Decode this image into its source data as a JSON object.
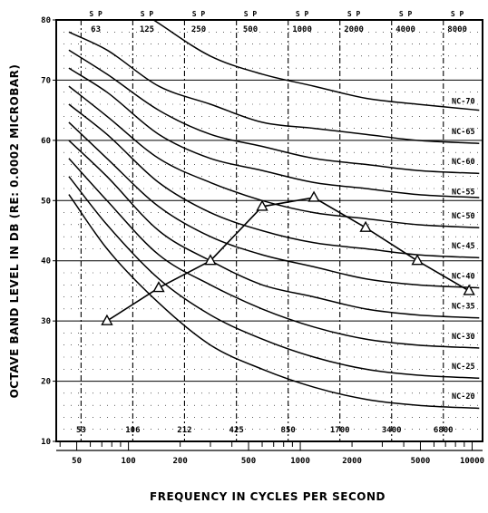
{
  "chart_data": {
    "type": "line",
    "xlabel": "FREQUENCY IN CYCLES PER SECOND",
    "ylabel": "OCTAVE BAND LEVEL IN DB (RE: 0.0002 MICROBAR)",
    "x_scale": "log",
    "xlim": [
      38,
      11500
    ],
    "ylim": [
      10,
      80
    ],
    "y_ticks": [
      10,
      20,
      30,
      40,
      50,
      60,
      70,
      80
    ],
    "x_ticks": [
      {
        "value": 50,
        "label": "50"
      },
      {
        "value": 100,
        "label": "100"
      },
      {
        "value": 200,
        "label": "200"
      },
      {
        "value": 500,
        "label": "500"
      },
      {
        "value": 1000,
        "label": "1000"
      },
      {
        "value": 2000,
        "label": "2000"
      },
      {
        "value": 5000,
        "label": "5000"
      },
      {
        "value": 10000,
        "label": "10000"
      }
    ],
    "band_edges": [
      {
        "value": 53,
        "label": "53"
      },
      {
        "value": 106,
        "label": "106"
      },
      {
        "value": 212,
        "label": "212"
      },
      {
        "value": 425,
        "label": "425"
      },
      {
        "value": 850,
        "label": "850"
      },
      {
        "value": 1700,
        "label": "1700"
      },
      {
        "value": 3400,
        "label": "3400"
      },
      {
        "value": 6800,
        "label": "6800"
      }
    ],
    "band_centers": [
      {
        "value": 63,
        "label": "63"
      },
      {
        "value": 125,
        "label": "125"
      },
      {
        "value": 250,
        "label": "250"
      },
      {
        "value": 500,
        "label": "500"
      },
      {
        "value": 1000,
        "label": "1000"
      },
      {
        "value": 2000,
        "label": "2000"
      },
      {
        "value": 4000,
        "label": "4000"
      },
      {
        "value": 8000,
        "label": "8000"
      }
    ],
    "sp_label": "S P",
    "nc_curves": [
      {
        "name": "NC-20",
        "points": [
          [
            45,
            51
          ],
          [
            75,
            42
          ],
          [
            150,
            33
          ],
          [
            300,
            26
          ],
          [
            600,
            22
          ],
          [
            1200,
            19
          ],
          [
            2400,
            17
          ],
          [
            4800,
            16
          ],
          [
            11000,
            15.5
          ]
        ]
      },
      {
        "name": "NC-25",
        "points": [
          [
            45,
            54
          ],
          [
            75,
            46
          ],
          [
            150,
            37
          ],
          [
            300,
            31
          ],
          [
            600,
            27
          ],
          [
            1200,
            24
          ],
          [
            2400,
            22
          ],
          [
            4800,
            21
          ],
          [
            11000,
            20.5
          ]
        ]
      },
      {
        "name": "NC-30",
        "points": [
          [
            45,
            57
          ],
          [
            75,
            50
          ],
          [
            150,
            41
          ],
          [
            300,
            36
          ],
          [
            600,
            32
          ],
          [
            1200,
            29
          ],
          [
            2400,
            27
          ],
          [
            4800,
            26
          ],
          [
            11000,
            25.5
          ]
        ]
      },
      {
        "name": "NC-35",
        "points": [
          [
            45,
            60
          ],
          [
            75,
            54
          ],
          [
            150,
            45
          ],
          [
            300,
            40
          ],
          [
            600,
            36
          ],
          [
            1200,
            34
          ],
          [
            2400,
            32
          ],
          [
            4800,
            31
          ],
          [
            11000,
            30.5
          ]
        ]
      },
      {
        "name": "NC-40",
        "points": [
          [
            45,
            63
          ],
          [
            75,
            57
          ],
          [
            150,
            49
          ],
          [
            300,
            44
          ],
          [
            600,
            41
          ],
          [
            1200,
            39
          ],
          [
            2400,
            37
          ],
          [
            4800,
            36
          ],
          [
            11000,
            35.5
          ]
        ]
      },
      {
        "name": "NC-45",
        "points": [
          [
            45,
            66
          ],
          [
            75,
            61
          ],
          [
            150,
            53
          ],
          [
            300,
            48
          ],
          [
            600,
            45
          ],
          [
            1200,
            43
          ],
          [
            2400,
            42
          ],
          [
            4800,
            41
          ],
          [
            11000,
            40.5
          ]
        ]
      },
      {
        "name": "NC-50",
        "points": [
          [
            45,
            69
          ],
          [
            75,
            64
          ],
          [
            150,
            57
          ],
          [
            300,
            53
          ],
          [
            600,
            50
          ],
          [
            1200,
            48
          ],
          [
            2400,
            47
          ],
          [
            4800,
            46
          ],
          [
            11000,
            45.5
          ]
        ]
      },
      {
        "name": "NC-55",
        "points": [
          [
            45,
            72
          ],
          [
            75,
            68
          ],
          [
            150,
            61
          ],
          [
            300,
            57
          ],
          [
            600,
            55
          ],
          [
            1200,
            53
          ],
          [
            2400,
            52
          ],
          [
            4800,
            51
          ],
          [
            11000,
            50.5
          ]
        ]
      },
      {
        "name": "NC-60",
        "points": [
          [
            45,
            75
          ],
          [
            75,
            71
          ],
          [
            150,
            65
          ],
          [
            300,
            61
          ],
          [
            600,
            59
          ],
          [
            1200,
            57
          ],
          [
            2400,
            56
          ],
          [
            4800,
            55
          ],
          [
            11000,
            54.5
          ]
        ]
      },
      {
        "name": "NC-65",
        "points": [
          [
            45,
            78
          ],
          [
            75,
            75
          ],
          [
            150,
            69
          ],
          [
            300,
            66
          ],
          [
            600,
            63
          ],
          [
            1200,
            62
          ],
          [
            2400,
            61
          ],
          [
            4800,
            60
          ],
          [
            11000,
            59.5
          ]
        ]
      },
      {
        "name": "NC-70",
        "points": [
          [
            140,
            80
          ],
          [
            300,
            74
          ],
          [
            600,
            71
          ],
          [
            1200,
            69
          ],
          [
            2400,
            67
          ],
          [
            4800,
            66
          ],
          [
            11000,
            65
          ]
        ]
      }
    ],
    "nc_labels": [
      {
        "text": "NC-70",
        "y": 66.5
      },
      {
        "text": "NC-65",
        "y": 61.5
      },
      {
        "text": "NC-60",
        "y": 56.5
      },
      {
        "text": "NC-55",
        "y": 51.5
      },
      {
        "text": "NC-50",
        "y": 47.5
      },
      {
        "text": "NC-45",
        "y": 42.5
      },
      {
        "text": "NC-40",
        "y": 37.5
      },
      {
        "text": "NC-35",
        "y": 32.5
      },
      {
        "text": "NC-30",
        "y": 27.5
      },
      {
        "text": "NC-25",
        "y": 22.5
      },
      {
        "text": "NC-20",
        "y": 17.5
      }
    ],
    "measured": {
      "x": [
        75,
        150,
        300,
        600,
        1200,
        2400,
        4800,
        9600
      ],
      "y": [
        30,
        35.5,
        40,
        49,
        50.5,
        45.5,
        40,
        35
      ],
      "marker": "triangle"
    }
  }
}
